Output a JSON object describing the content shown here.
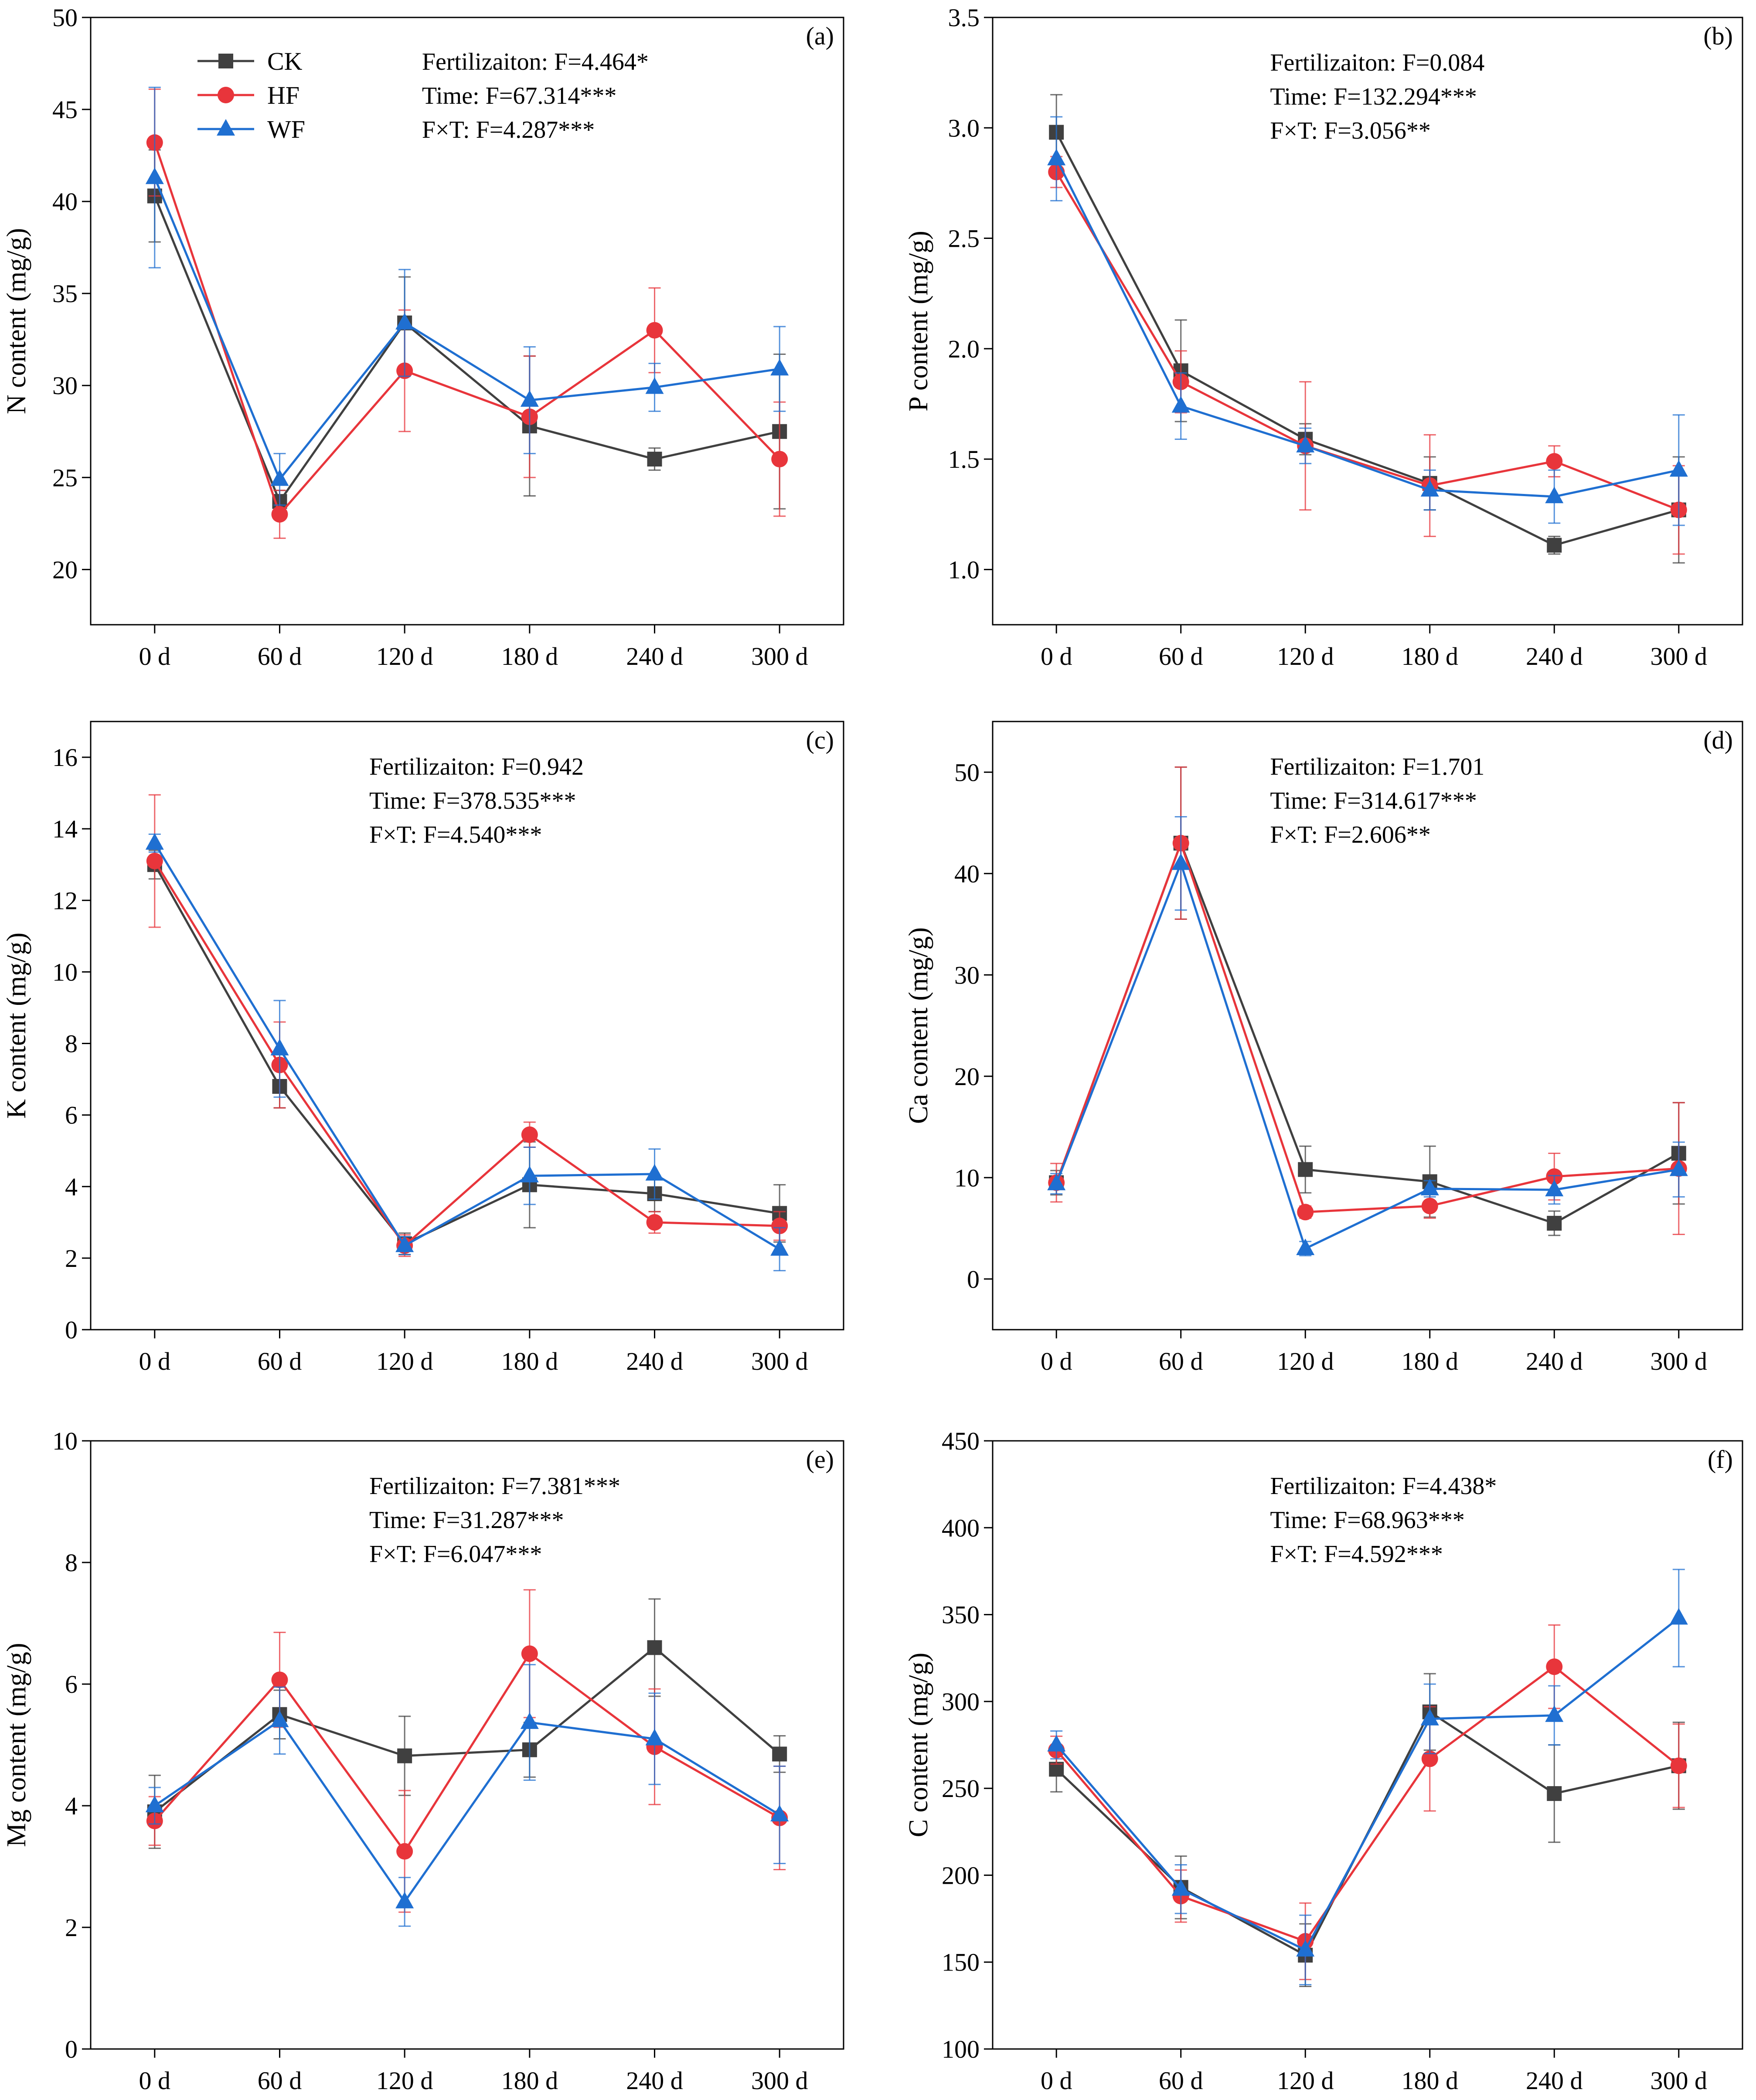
{
  "figure": {
    "colors": {
      "CK": "#404040",
      "HF": "#e8353b",
      "WF": "#1f6fd1"
    },
    "legend": [
      {
        "name": "CK",
        "marker": "square"
      },
      {
        "name": "HF",
        "marker": "circle"
      },
      {
        "name": "WF",
        "marker": "triangle"
      }
    ]
  },
  "chart_data": [
    {
      "type": "line",
      "panel": "(a)",
      "ylabel": "N content (mg/g)",
      "categories": [
        "0 d",
        "60 d",
        "120 d",
        "180 d",
        "240 d",
        "300 d"
      ],
      "ylim": [
        17,
        50
      ],
      "yticks": [
        20,
        25,
        30,
        35,
        40,
        45,
        50
      ],
      "stats": [
        "Fertilizaiton:  F=4.464*",
        "Time:   F=67.314***",
        "F×T:    F=4.287***"
      ],
      "legend": true,
      "series": [
        {
          "name": "CK",
          "values": [
            40.3,
            23.7,
            33.4,
            27.8,
            26.0,
            27.5
          ],
          "errors": [
            2.5,
            0.6,
            2.5,
            3.8,
            0.6,
            4.2
          ]
        },
        {
          "name": "HF",
          "values": [
            43.2,
            23.0,
            30.8,
            28.3,
            33.0,
            26.0
          ],
          "errors": [
            2.9,
            1.3,
            3.3,
            3.3,
            2.3,
            3.1
          ]
        },
        {
          "name": "WF",
          "values": [
            41.3,
            24.9,
            33.4,
            29.2,
            29.9,
            30.9
          ],
          "errors": [
            4.9,
            1.4,
            2.9,
            2.9,
            1.3,
            2.3
          ]
        }
      ]
    },
    {
      "type": "line",
      "panel": "(b)",
      "ylabel": "P content (mg/g)",
      "categories": [
        "0 d",
        "60 d",
        "120 d",
        "180 d",
        "240 d",
        "300 d"
      ],
      "ylim": [
        0.75,
        3.5
      ],
      "yticks": [
        1.0,
        1.5,
        2.0,
        2.5,
        3.0,
        3.5
      ],
      "stats": [
        "Fertilizaiton:  F=0.084",
        "Time:    F=132.294***",
        "F×T:     F=3.056**"
      ],
      "legend": false,
      "series": [
        {
          "name": "CK",
          "values": [
            2.98,
            1.9,
            1.59,
            1.39,
            1.11,
            1.27
          ],
          "errors": [
            0.17,
            0.23,
            0.07,
            0.12,
            0.04,
            0.24
          ]
        },
        {
          "name": "HF",
          "values": [
            2.8,
            1.85,
            1.56,
            1.38,
            1.49,
            1.27
          ],
          "errors": [
            0.07,
            0.14,
            0.29,
            0.23,
            0.07,
            0.2
          ]
        },
        {
          "name": "WF",
          "values": [
            2.86,
            1.74,
            1.56,
            1.36,
            1.33,
            1.45
          ],
          "errors": [
            0.19,
            0.15,
            0.08,
            0.09,
            0.12,
            0.25
          ]
        }
      ]
    },
    {
      "type": "line",
      "panel": "(c)",
      "ylabel": "K content (mg/g)",
      "categories": [
        "0 d",
        "60 d",
        "120 d",
        "180 d",
        "240 d",
        "300 d"
      ],
      "ylim": [
        0,
        17
      ],
      "yticks": [
        0,
        2,
        4,
        6,
        8,
        10,
        12,
        14,
        16
      ],
      "stats": [
        "Fertilizaiton:  F=0.942",
        "Time:    F=378.535***",
        "F×T:     F=4.540***"
      ],
      "legend": false,
      "series": [
        {
          "name": "CK",
          "values": [
            13.0,
            6.8,
            2.4,
            4.05,
            3.8,
            3.25
          ],
          "errors": [
            0.4,
            0.6,
            0.3,
            1.2,
            0.5,
            0.8
          ]
        },
        {
          "name": "HF",
          "values": [
            13.1,
            7.4,
            2.35,
            5.45,
            3.0,
            2.9
          ],
          "errors": [
            1.85,
            1.2,
            0.3,
            0.35,
            0.3,
            0.4
          ]
        },
        {
          "name": "WF",
          "values": [
            13.6,
            7.85,
            2.35,
            4.3,
            4.35,
            2.25
          ],
          "errors": [
            0.25,
            1.35,
            0.25,
            0.8,
            0.7,
            0.6
          ]
        }
      ]
    },
    {
      "type": "line",
      "panel": "(d)",
      "ylabel": "Ca content (mg/g)",
      "categories": [
        "0 d",
        "60 d",
        "120 d",
        "180 d",
        "240 d",
        "300 d"
      ],
      "ylim": [
        -5,
        55
      ],
      "yticks": [
        0,
        10,
        20,
        30,
        40,
        50
      ],
      "stats": [
        "Fertilizaiton:  F=1.701",
        "Time:    F=314.617***",
        "F×T:     F=2.606**"
      ],
      "legend": false,
      "series": [
        {
          "name": "CK",
          "values": [
            9.5,
            43.0,
            10.8,
            9.6,
            5.5,
            12.4
          ],
          "errors": [
            1.2,
            7.5,
            2.3,
            3.5,
            1.2,
            5.0
          ]
        },
        {
          "name": "HF",
          "values": [
            9.5,
            43.0,
            6.6,
            7.2,
            10.1,
            10.9
          ],
          "errors": [
            1.9,
            7.5,
            0.6,
            1.2,
            2.3,
            6.5
          ]
        },
        {
          "name": "WF",
          "values": [
            9.4,
            41.0,
            3.0,
            8.9,
            8.8,
            10.8
          ],
          "errors": [
            1.0,
            4.6,
            0.7,
            0.8,
            1.4,
            2.7
          ]
        }
      ]
    },
    {
      "type": "line",
      "panel": "(e)",
      "ylabel": "Mg content (mg/g)",
      "categories": [
        "0 d",
        "60 d",
        "120 d",
        "180 d",
        "240 d",
        "300 d"
      ],
      "ylim": [
        0,
        10
      ],
      "yticks": [
        0,
        2,
        4,
        6,
        8,
        10
      ],
      "stats": [
        "Fertilizaiton:  F=7.381***",
        "Time:    F=31.287***",
        "F×T:     F=6.047***"
      ],
      "legend": false,
      "series": [
        {
          "name": "CK",
          "values": [
            3.9,
            5.5,
            4.82,
            4.92,
            6.6,
            4.85
          ],
          "errors": [
            0.6,
            0.4,
            0.65,
            0.45,
            0.8,
            0.3
          ]
        },
        {
          "name": "HF",
          "values": [
            3.75,
            6.07,
            3.25,
            6.5,
            4.97,
            3.8
          ],
          "errors": [
            0.4,
            0.78,
            1.0,
            1.05,
            0.95,
            0.85
          ]
        },
        {
          "name": "WF",
          "values": [
            4.0,
            5.4,
            2.42,
            5.37,
            5.1,
            3.85
          ],
          "errors": [
            0.3,
            0.55,
            0.4,
            0.95,
            0.75,
            0.8
          ]
        }
      ]
    },
    {
      "type": "line",
      "panel": "(f)",
      "ylabel": "C content (mg/g)",
      "categories": [
        "0 d",
        "60 d",
        "120 d",
        "180 d",
        "240 d",
        "300 d"
      ],
      "ylim": [
        100,
        450
      ],
      "yticks": [
        100,
        150,
        200,
        250,
        300,
        350,
        400,
        450
      ],
      "stats": [
        "Fertilizaiton:  F=4.438*",
        "Time:    F=68.963***",
        "F×T:     F=4.592***"
      ],
      "legend": false,
      "series": [
        {
          "name": "CK",
          "values": [
            261,
            193,
            154,
            294,
            247,
            263
          ],
          "errors": [
            13,
            18,
            18,
            22,
            28,
            25
          ]
        },
        {
          "name": "HF",
          "values": [
            272,
            188,
            162,
            267,
            320,
            263
          ],
          "errors": [
            8,
            15,
            22,
            30,
            24,
            24
          ]
        },
        {
          "name": "WF",
          "values": [
            275,
            192,
            157,
            290,
            292,
            348
          ],
          "errors": [
            8,
            14,
            20,
            20,
            17,
            28
          ]
        }
      ]
    }
  ]
}
